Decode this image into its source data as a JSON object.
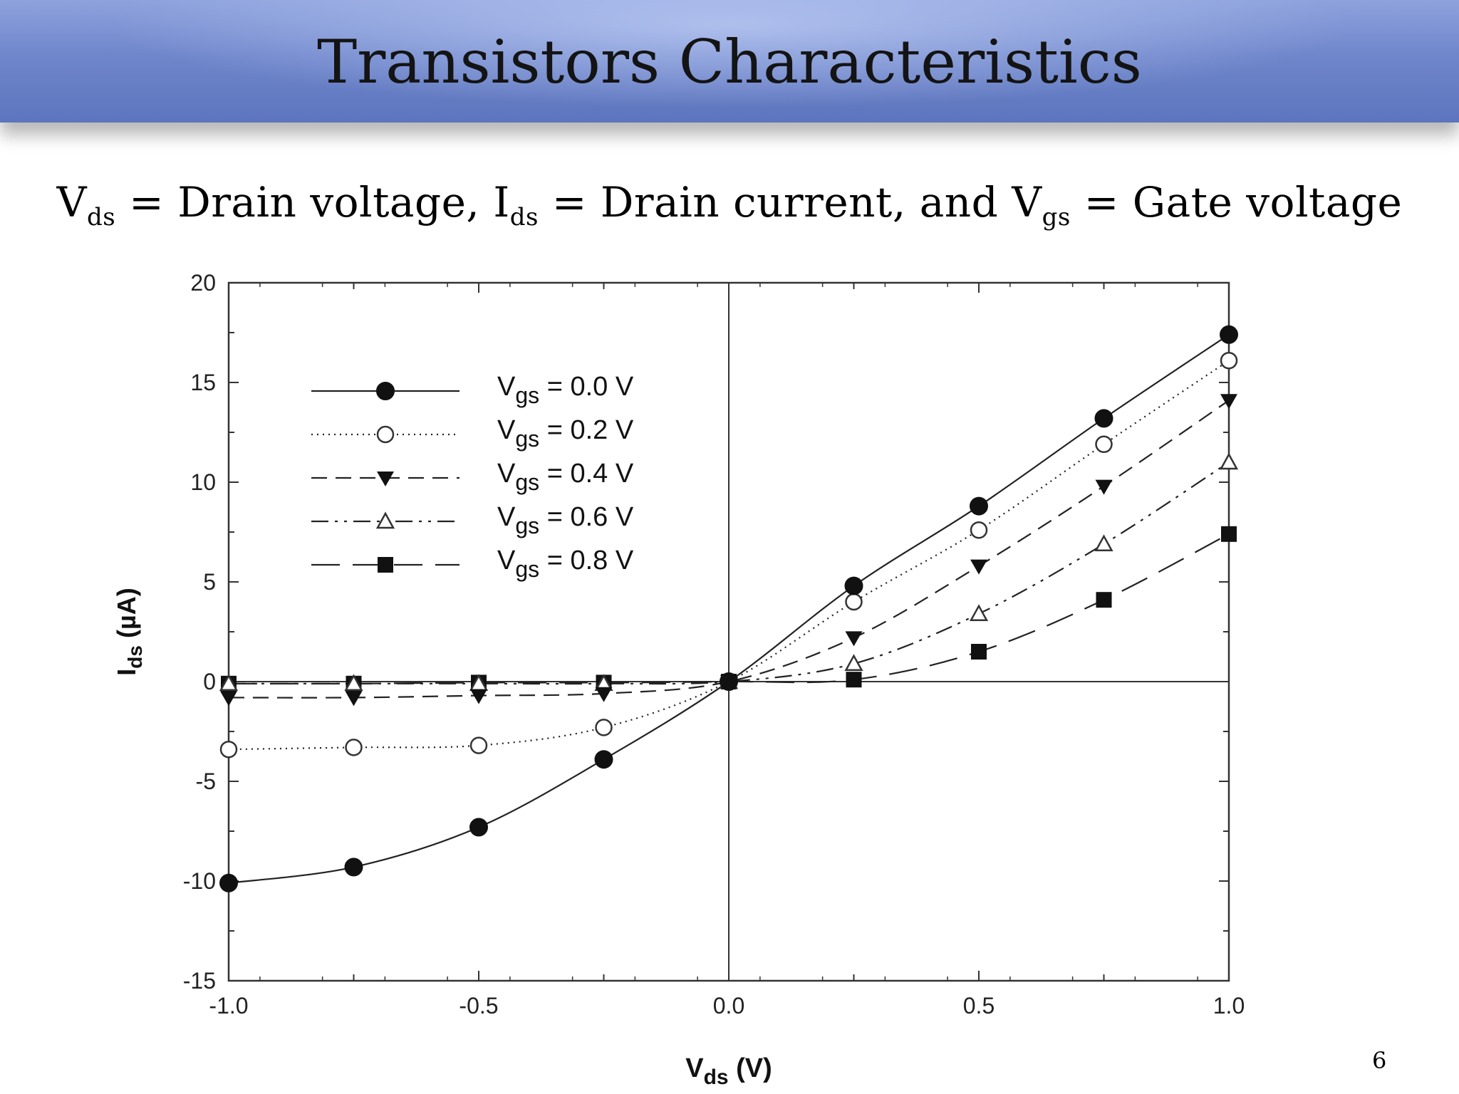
{
  "slide": {
    "title": "Transistors Characteristics",
    "subtitle": {
      "v1": "V",
      "v1_sub": "ds",
      "t1": " = Drain voltage, ",
      "v2": "I",
      "v2_sub": "ds",
      "t2": " = Drain current, and ",
      "v3": "V",
      "v3_sub": "gs",
      "t3": " = Gate voltage"
    },
    "page_number": "6"
  },
  "chart_data": {
    "type": "line",
    "xlabel": {
      "main": "V",
      "sub": "ds",
      "unit": " (V)"
    },
    "ylabel": {
      "main": "I",
      "sub": "ds",
      "unit": " (µA)"
    },
    "xlim": [
      -1.0,
      1.0
    ],
    "ylim": [
      -15,
      20
    ],
    "xticks": [
      "-1.0",
      "-0.5",
      "0.0",
      "0.5",
      "1.0"
    ],
    "yticks": [
      "20",
      "15",
      "10",
      "5",
      "0",
      "-5",
      "-10",
      "-15"
    ],
    "x": [
      -1.0,
      -0.75,
      -0.5,
      -0.25,
      0.0,
      0.25,
      0.5,
      0.75,
      1.0
    ],
    "series": [
      {
        "name": "Vgs = 0.0 V",
        "label_main": "V",
        "label_sub": "gs",
        "label_rest": " = 0.0 V",
        "marker": "circle-filled",
        "dash": "solid",
        "values": [
          -10.1,
          -9.3,
          -7.3,
          -3.9,
          0.0,
          4.8,
          8.8,
          13.2,
          17.4
        ]
      },
      {
        "name": "Vgs = 0.2 V",
        "label_main": "V",
        "label_sub": "gs",
        "label_rest": " = 0.2 V",
        "marker": "circle-open",
        "dash": "dotted",
        "values": [
          -3.4,
          -3.3,
          -3.2,
          -2.3,
          0.0,
          4.0,
          7.6,
          11.9,
          16.1
        ]
      },
      {
        "name": "Vgs = 0.4 V",
        "label_main": "V",
        "label_sub": "gs",
        "label_rest": " = 0.4 V",
        "marker": "triangle-down-filled",
        "dash": "dashed",
        "values": [
          -0.8,
          -0.8,
          -0.7,
          -0.6,
          0.0,
          2.2,
          5.8,
          9.8,
          14.1
        ]
      },
      {
        "name": "Vgs = 0.6 V",
        "label_main": "V",
        "label_sub": "gs",
        "label_rest": " = 0.6 V",
        "marker": "triangle-up-open",
        "dash": "dashdotdot",
        "values": [
          -0.1,
          -0.1,
          -0.1,
          -0.1,
          0.0,
          0.9,
          3.4,
          6.9,
          11.0
        ]
      },
      {
        "name": "Vgs = 0.8 V",
        "label_main": "V",
        "label_sub": "gs",
        "label_rest": " = 0.8 V",
        "marker": "square-filled",
        "dash": "longdash",
        "values": [
          -0.1,
          -0.1,
          -0.05,
          -0.05,
          0.0,
          0.1,
          1.5,
          4.1,
          7.4
        ]
      }
    ],
    "legend_position": "top-left",
    "grid": false,
    "zero_lines": true
  }
}
